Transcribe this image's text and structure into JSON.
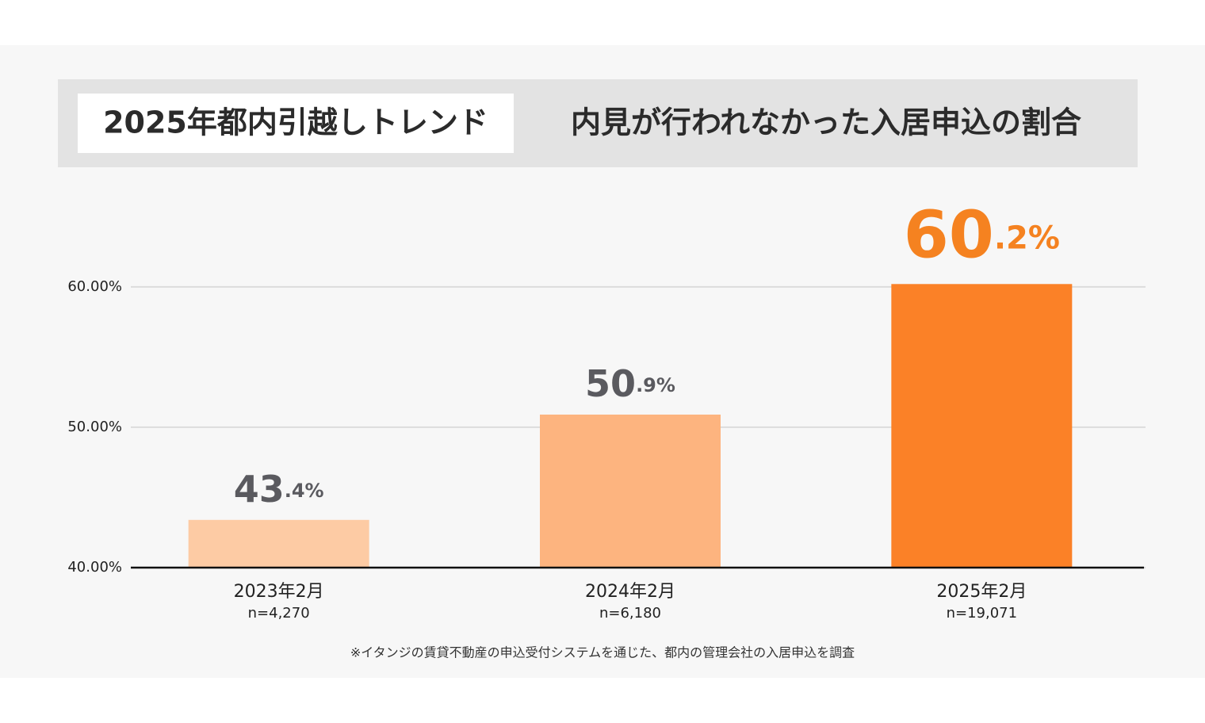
{
  "chart_data": {
    "type": "bar",
    "title_tag": "2025年都内引越しトレンド",
    "title": "内見が行われなかった入居申込の割合",
    "categories": [
      "2023年2月",
      "2024年2月",
      "2025年2月"
    ],
    "sample_sizes": [
      "n=4,270",
      "n=6,180",
      "n=19,071"
    ],
    "values": [
      43.4,
      50.9,
      60.2
    ],
    "value_labels": [
      "43.4%",
      "50.9%",
      "60.2%"
    ],
    "colors": [
      "#fdcba4",
      "#fdb47f",
      "#fb8127"
    ],
    "value_label_colors": [
      "#5a5a5f",
      "#5a5a5f",
      "#f58220"
    ],
    "ylim": [
      40,
      64
    ],
    "yticks": [
      {
        "value": 40,
        "label": "40.00%"
      },
      {
        "value": 50,
        "label": "50.00%"
      },
      {
        "value": 60,
        "label": "60.00%"
      }
    ],
    "grid": true,
    "footnote": "※イタンジの賃貸不動産の申込受付システムを通じた、都内の管理会社の入居申込を調査"
  }
}
